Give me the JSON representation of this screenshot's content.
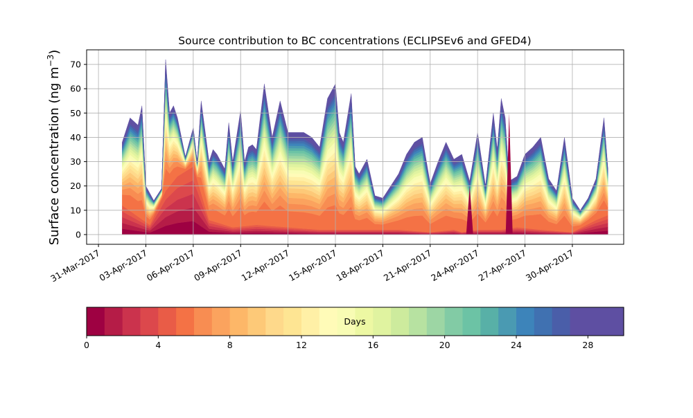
{
  "chart_data": [
    {
      "type": "area",
      "title": "Source contribution to BC concentrations (ECLIPSEv6 and GFED4)",
      "ylabel_text": "Surface concentration (ng m",
      "ylabel_exp": "−3",
      "ylabel_close": ")",
      "xlabel": "",
      "ylim": [
        -4,
        76
      ],
      "grid": true,
      "x_ticks": [
        "31-Mar-2017",
        "03-Apr-2017",
        "06-Apr-2017",
        "09-Apr-2017",
        "12-Apr-2017",
        "15-Apr-2017",
        "18-Apr-2017",
        "21-Apr-2017",
        "24-Apr-2017",
        "27-Apr-2017",
        "30-Apr-2017"
      ],
      "y_ticks": [
        "0",
        "10",
        "20",
        "30",
        "40",
        "50",
        "60",
        "70"
      ],
      "x_start_date": "2017-03-30T06:00",
      "x_end_date": "2017-05-03T06:00",
      "stack_levels": 30,
      "total": {
        "dates": [
          "2017-04-01T12:00",
          "2017-04-02T00:00",
          "2017-04-02T12:00",
          "2017-04-02T18:00",
          "2017-04-03T00:00",
          "2017-04-03T06:00",
          "2017-04-03T12:00",
          "2017-04-04T00:00",
          "2017-04-04T06:00",
          "2017-04-04T12:00",
          "2017-04-04T18:00",
          "2017-04-05T00:00",
          "2017-04-05T12:00",
          "2017-04-06T00:00",
          "2017-04-06T06:00",
          "2017-04-06T12:00",
          "2017-04-07T00:00",
          "2017-04-07T06:00",
          "2017-04-07T12:00",
          "2017-04-08T00:00",
          "2017-04-08T06:00",
          "2017-04-08T12:00",
          "2017-04-09T00:00",
          "2017-04-09T06:00",
          "2017-04-09T12:00",
          "2017-04-09T18:00",
          "2017-04-10T00:00",
          "2017-04-10T12:00",
          "2017-04-11T00:00",
          "2017-04-11T12:00",
          "2017-04-12T00:00",
          "2017-04-12T12:00",
          "2017-04-13T00:00",
          "2017-04-13T12:00",
          "2017-04-14T00:00",
          "2017-04-14T12:00",
          "2017-04-15T00:00",
          "2017-04-15T06:00",
          "2017-04-15T12:00",
          "2017-04-16T00:00",
          "2017-04-16T06:00",
          "2017-04-16T12:00",
          "2017-04-17T00:00",
          "2017-04-17T12:00",
          "2017-04-18T00:00",
          "2017-04-18T12:00",
          "2017-04-19T00:00",
          "2017-04-19T12:00",
          "2017-04-20T00:00",
          "2017-04-20T12:00",
          "2017-04-21T00:00",
          "2017-04-21T12:00",
          "2017-04-22T00:00",
          "2017-04-22T12:00",
          "2017-04-23T00:00",
          "2017-04-23T12:00",
          "2017-04-24T00:00",
          "2017-04-24T12:00",
          "2017-04-25T00:00",
          "2017-04-25T06:00",
          "2017-04-25T12:00",
          "2017-04-25T18:00",
          "2017-04-26T00:00",
          "2017-04-26T12:00",
          "2017-04-27T00:00",
          "2017-04-27T12:00",
          "2017-04-28T00:00",
          "2017-04-28T12:00",
          "2017-04-29T00:00",
          "2017-04-29T12:00",
          "2017-04-30T00:00",
          "2017-04-30T12:00",
          "2017-05-01T00:00",
          "2017-05-01T12:00",
          "2017-05-02T00:00",
          "2017-05-02T06:00"
        ],
        "values": [
          38,
          48,
          45,
          53,
          20,
          17,
          14,
          19,
          72,
          50,
          53,
          48,
          32,
          44,
          30,
          55,
          30,
          35,
          33,
          27,
          46,
          30,
          51,
          30,
          36,
          37,
          35,
          62,
          40,
          55,
          42,
          42,
          42,
          40,
          36,
          56,
          62,
          42,
          38,
          58,
          28,
          25,
          31,
          16,
          15,
          20,
          25,
          33,
          38,
          40,
          21,
          30,
          38,
          31,
          33,
          22,
          42,
          20,
          50,
          35,
          56,
          48,
          22,
          24,
          33,
          36,
          40,
          23,
          18,
          40,
          15,
          10,
          15,
          23,
          48,
          27
        ]
      },
      "base_red": {
        "dates": [
          "2017-04-01T12:00",
          "2017-04-03T06:00",
          "2017-04-04T06:00",
          "2017-04-05T00:00",
          "2017-04-06T00:00",
          "2017-04-07T00:00",
          "2017-04-08T12:00",
          "2017-04-10T00:00",
          "2017-04-14T00:00",
          "2017-04-19T00:00",
          "2017-04-21T00:00",
          "2017-04-22T12:00",
          "2017-04-23T00:00",
          "2017-04-24T00:00",
          "2017-04-25T12:00",
          "2017-04-26T12:00",
          "2017-04-28T00:00",
          "2017-04-30T00:00",
          "2017-05-01T12:00",
          "2017-05-02T06:00"
        ],
        "values": [
          12,
          4,
          18,
          24,
          28,
          6,
          3,
          4,
          2,
          2,
          1,
          2,
          1,
          2,
          2,
          3,
          2,
          1,
          6,
          8
        ]
      },
      "colorbar": {
        "label": "Days",
        "ticks": [
          "0",
          "4",
          "8",
          "12",
          "16",
          "20",
          "24",
          "28"
        ],
        "levels": 30,
        "colors": [
          "#9e0142",
          "#b51c47",
          "#cb334d",
          "#dc484c",
          "#e95c47",
          "#f47245",
          "#f88d52",
          "#fba35e",
          "#fdb768",
          "#fdc978",
          "#fed98b",
          "#fee593",
          "#fff0a6",
          "#fffbb8",
          "#f8fcb4",
          "#edf8a3",
          "#e0f3a0",
          "#cdeb9d",
          "#b7e2a1",
          "#9dd6a4",
          "#82cba5",
          "#6cc3a5",
          "#58b0a7",
          "#4a9ab2",
          "#3d84ba",
          "#4071b1",
          "#4a5ea9",
          "#5e4fa2",
          "#5e4fa2",
          "#5e4fa2"
        ]
      },
      "spikes": [
        {
          "date": "2017-04-23T12:00",
          "value": 20
        },
        {
          "date": "2017-04-26T00:00",
          "value": 50
        }
      ]
    }
  ]
}
